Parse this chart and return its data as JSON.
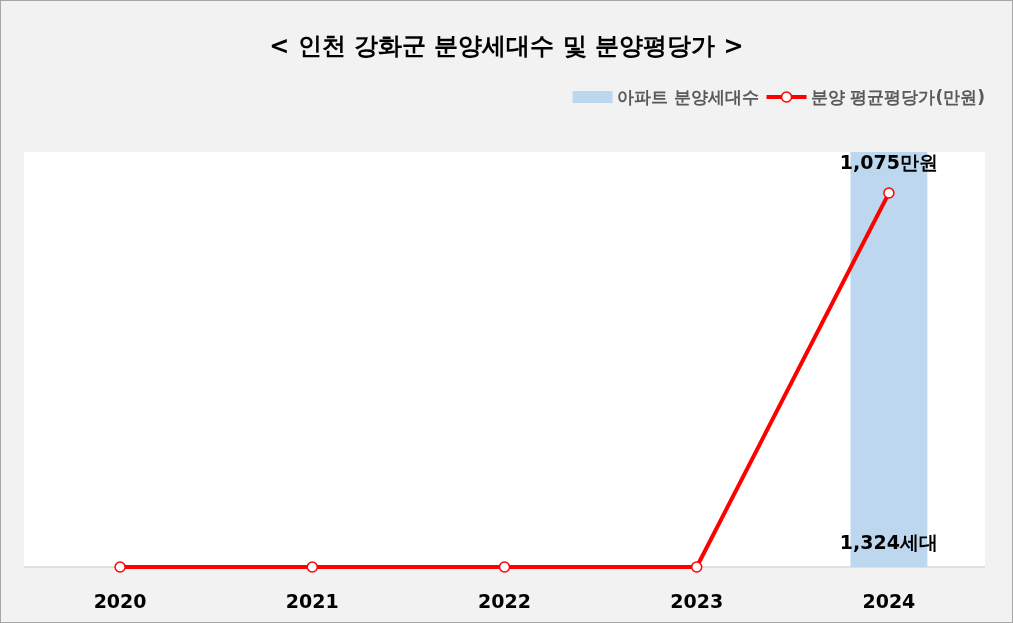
{
  "chart_data": {
    "type": "bar",
    "title": "< 인천 강화군 분양세대수 및 분양평당가 >",
    "categories": [
      "2020",
      "2021",
      "2022",
      "2023",
      "2024"
    ],
    "series": [
      {
        "name": "아파트 분양세대수",
        "color": "#bdd7ee",
        "values": [
          0,
          0,
          0,
          0,
          1324
        ],
        "value_labels": [
          null,
          null,
          null,
          null,
          "1,324세대"
        ]
      },
      {
        "name": "분양 평균평당가(만원)",
        "type": "line",
        "axis": "y2",
        "color": "#ff0000",
        "marker": "circle",
        "values": [
          0,
          0,
          0,
          0,
          1075
        ],
        "value_labels": [
          null,
          null,
          null,
          null,
          "1,075만원"
        ]
      }
    ],
    "ylim": [
      0,
      1324
    ],
    "y2lim": [
      0,
      1193
    ],
    "legend": "top right",
    "tick_labels": "x"
  }
}
